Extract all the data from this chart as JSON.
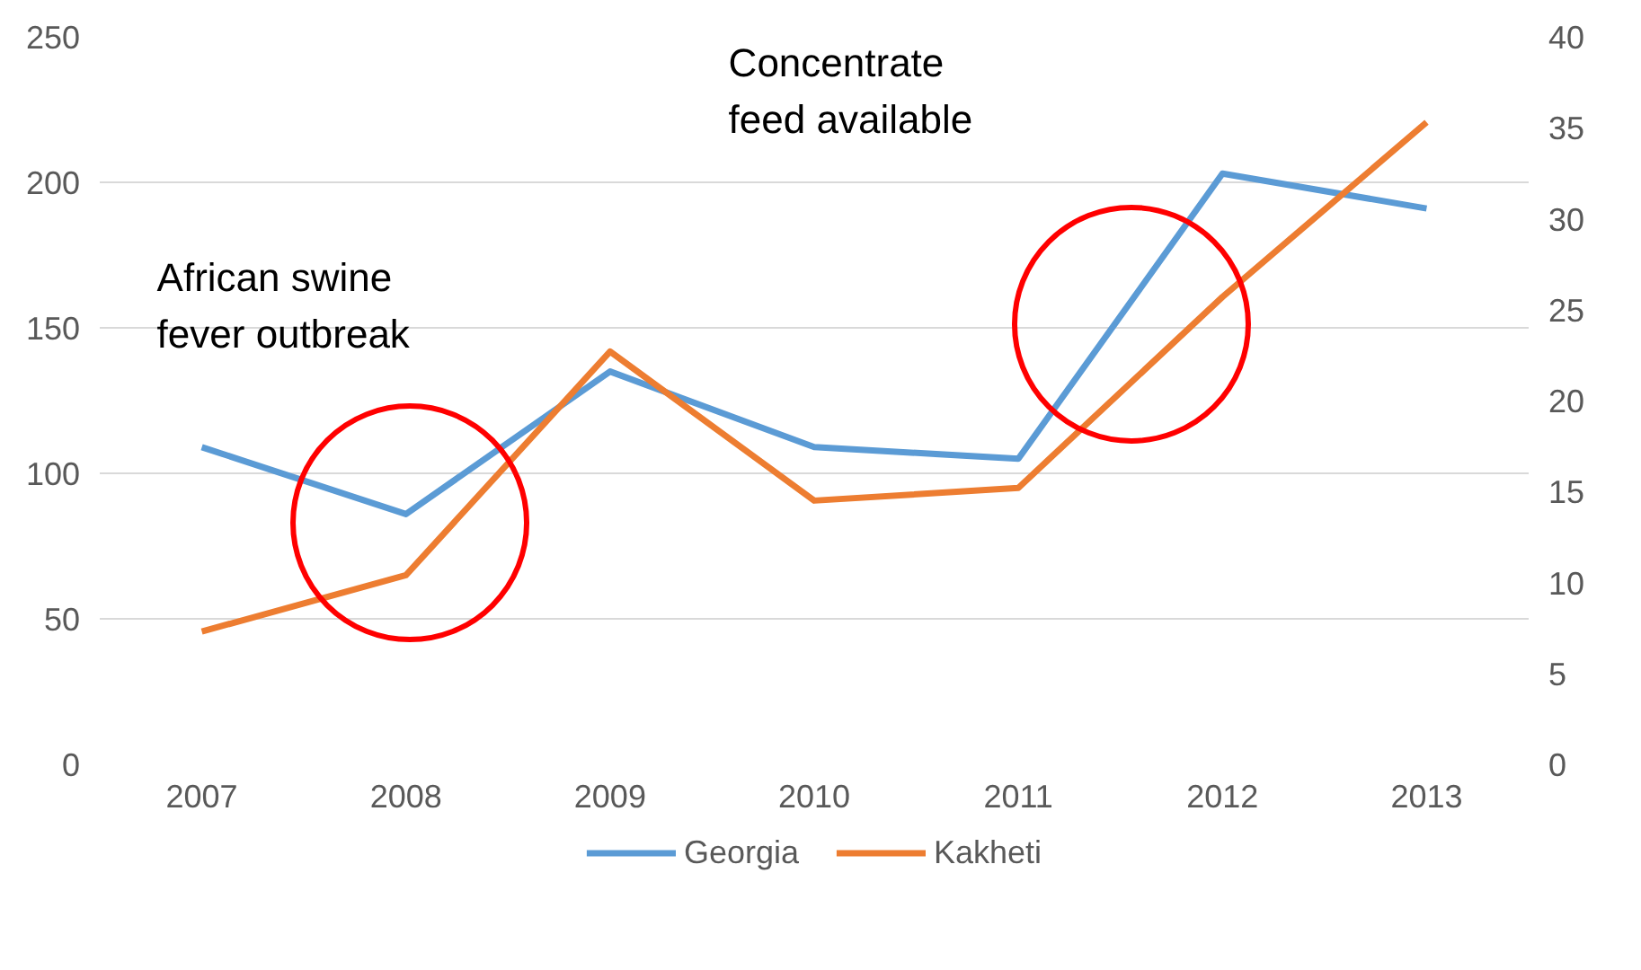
{
  "chart_data": {
    "type": "line",
    "x": [
      2007,
      2008,
      2009,
      2010,
      2011,
      2012,
      2013
    ],
    "xlim": [
      2006.5,
      2013.5
    ],
    "xticks": [
      2007,
      2008,
      2009,
      2010,
      2011,
      2012,
      2013
    ],
    "ylim": [
      0,
      250
    ],
    "yticks": [
      0,
      50,
      100,
      150,
      200,
      250
    ],
    "y2lim": [
      0,
      40
    ],
    "y2ticks": [
      0,
      5,
      10,
      15,
      20,
      25,
      30,
      35,
      40
    ],
    "series": [
      {
        "name": "Georgia",
        "color": "#5b9bd5",
        "values": [
          109,
          86,
          135,
          109,
          105,
          203,
          191
        ]
      },
      {
        "name": "Kakheti",
        "color": "#ed7d31",
        "axis": "y2",
        "values": [
          7.3,
          10.4,
          22.7,
          14.5,
          15.2,
          25.7,
          35.3
        ]
      }
    ],
    "annotations": [
      "African swine\nfever outbreak",
      "Concentrate\nfeed available"
    ],
    "grid": "y",
    "legend": "bottom",
    "line_style": "solid",
    "marker": "none"
  }
}
